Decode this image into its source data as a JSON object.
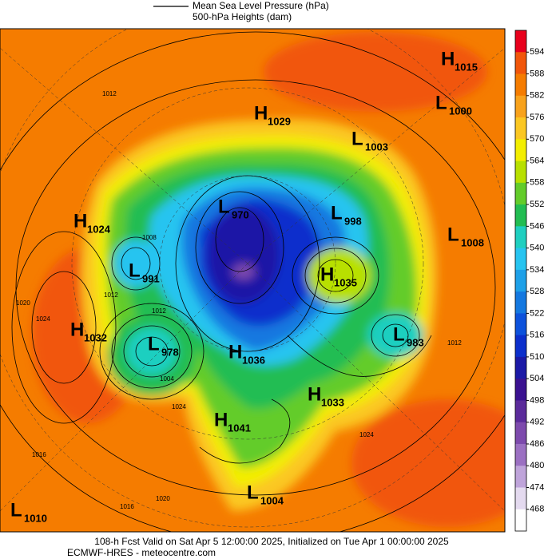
{
  "legend": {
    "line_label": "Mean Sea Level Pressure (hPa)",
    "fill_label": "500-hPa Heights (dam)"
  },
  "colorbar": {
    "ticks": [
      594,
      588,
      582,
      576,
      570,
      564,
      558,
      552,
      546,
      540,
      534,
      528,
      522,
      516,
      510,
      504,
      498,
      492,
      486,
      480,
      474,
      468
    ],
    "colors": [
      "#e8001c",
      "#f1560a",
      "#f57c00",
      "#f8a21c",
      "#fbc723",
      "#f3ee00",
      "#b8e000",
      "#63cc2a",
      "#22bd52",
      "#1fcfc0",
      "#27c4f0",
      "#1ea0e8",
      "#1478e0",
      "#0d52dc",
      "#0c2fcc",
      "#1b19a6",
      "#3a1190",
      "#5b2b9b",
      "#7d4aad",
      "#9b70c2",
      "#bfa4da",
      "#e4daef",
      "#ffffff"
    ]
  },
  "centers": [
    {
      "type": "H",
      "value": 1015
    },
    {
      "type": "L",
      "value": 1000
    },
    {
      "type": "H",
      "value": 1029
    },
    {
      "type": "L",
      "value": 1003
    },
    {
      "type": "L",
      "value": 970
    },
    {
      "type": "L",
      "value": 998
    },
    {
      "type": "H",
      "value": 1024
    },
    {
      "type": "L",
      "value": 1008
    },
    {
      "type": "L",
      "value": 991
    },
    {
      "type": "H",
      "value": 1035
    },
    {
      "type": "H",
      "value": 1032
    },
    {
      "type": "L",
      "value": 978
    },
    {
      "type": "L",
      "value": 983
    },
    {
      "type": "H",
      "value": 1036
    },
    {
      "type": "H",
      "value": 1033
    },
    {
      "type": "H",
      "value": 1041
    },
    {
      "type": "L",
      "value": 1004
    },
    {
      "type": "L",
      "value": 1010
    }
  ],
  "isobar_labels": [
    "1012",
    "1012",
    "1008",
    "1012",
    "1020",
    "1024",
    "1004",
    "1024",
    "1016",
    "1020",
    "1016",
    "1012",
    "1024"
  ],
  "footer": {
    "line1": "108-h Fcst Valid on Sat Apr  5 12:00:00 2025, Initialized on Tue Apr  1 00:00:00 2025",
    "line2": "ECMWF-HRES  - meteocentre.com"
  }
}
